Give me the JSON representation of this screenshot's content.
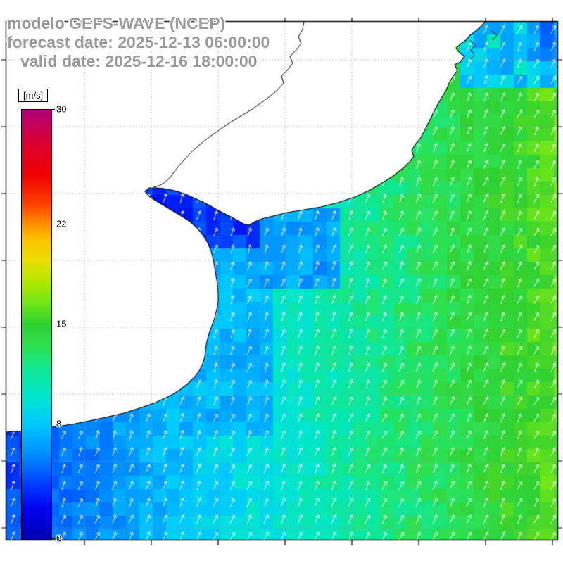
{
  "header": {
    "line1": "modelo GEFS-WAVE (NCEP)",
    "line2": "forecast date: 2025-12-13 06:00:00",
    "line3": "   valid date: 2025-12-16 18:00:00",
    "text_color": "#9a9a9a"
  },
  "colorbar": {
    "units_label": "[m/s]",
    "min": 0,
    "max": 30,
    "ticks": [
      {
        "value": 30,
        "label": "30"
      },
      {
        "value": 22,
        "label": "22"
      },
      {
        "value": 15,
        "label": "15"
      },
      {
        "value": 8,
        "label": "8"
      },
      {
        "value": 0,
        "label": "0"
      }
    ],
    "stops": [
      {
        "t": 0.0,
        "color": "#0000b0"
      },
      {
        "t": 0.07,
        "color": "#0000ee"
      },
      {
        "t": 0.13,
        "color": "#0040ff"
      },
      {
        "t": 0.2,
        "color": "#0090ff"
      },
      {
        "t": 0.267,
        "color": "#00c8ff"
      },
      {
        "t": 0.33,
        "color": "#00e6d0"
      },
      {
        "t": 0.4,
        "color": "#10e690"
      },
      {
        "t": 0.45,
        "color": "#2ee150"
      },
      {
        "t": 0.5,
        "color": "#30d030"
      },
      {
        "t": 0.55,
        "color": "#70e618"
      },
      {
        "t": 0.6,
        "color": "#b4e600"
      },
      {
        "t": 0.65,
        "color": "#ecdf00"
      },
      {
        "t": 0.7,
        "color": "#ffc000"
      },
      {
        "t": 0.733,
        "color": "#ff9000"
      },
      {
        "t": 0.78,
        "color": "#ff4000"
      },
      {
        "t": 0.85,
        "color": "#ee0000"
      },
      {
        "t": 0.92,
        "color": "#dc0030"
      },
      {
        "t": 1.0,
        "color": "#b00078"
      }
    ]
  },
  "map": {
    "arrow_color": "#ffffff",
    "land_color": "#ffffff",
    "coastline_color": "#000000",
    "grid_color": "#9a9a9a",
    "frame_color": "#000000"
  }
}
